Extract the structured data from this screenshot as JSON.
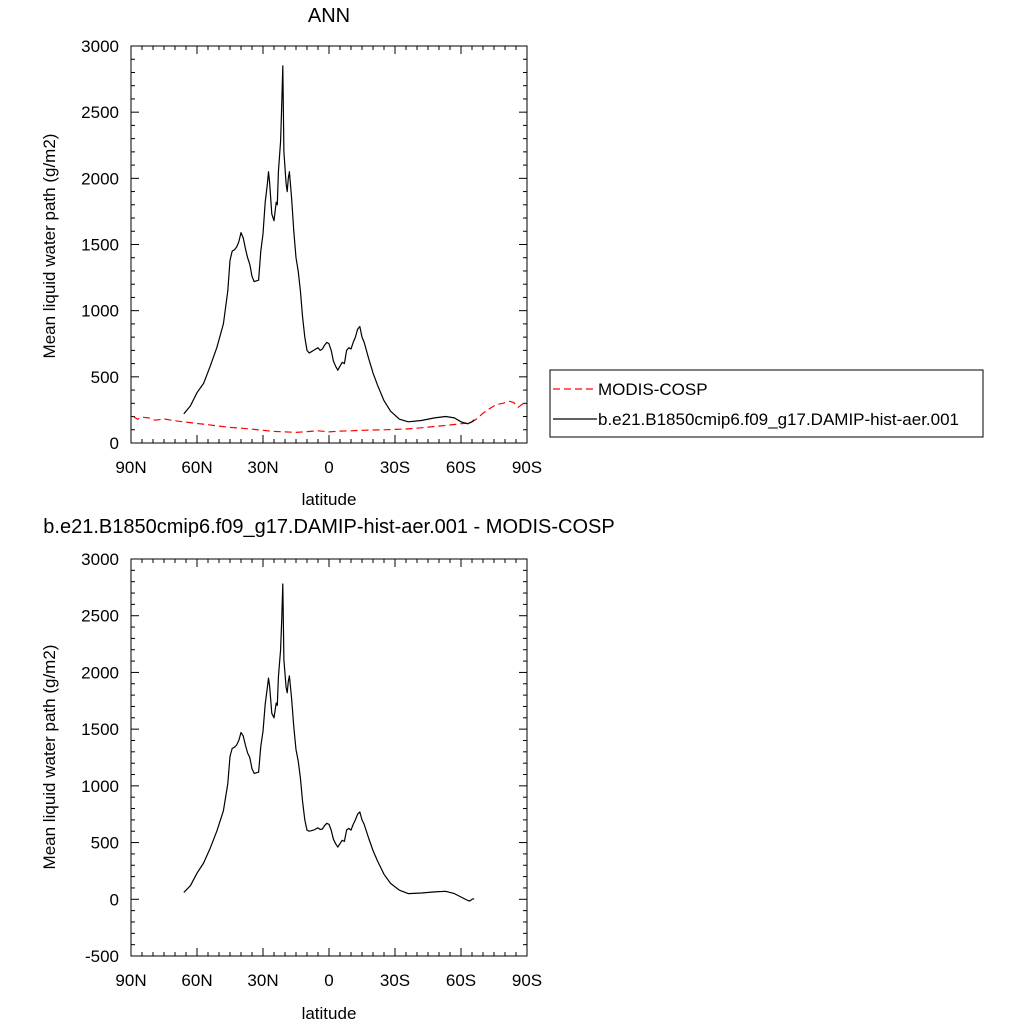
{
  "chart_data": [
    {
      "type": "line",
      "title": "ANN",
      "xlabel": "latitude",
      "ylabel": "Mean liquid water path (g/m2)",
      "xlim": [
        90,
        -90
      ],
      "ylim": [
        0,
        3000
      ],
      "xticks": [
        {
          "value": 90,
          "label": "90N"
        },
        {
          "value": 60,
          "label": "60N"
        },
        {
          "value": 30,
          "label": "30N"
        },
        {
          "value": 0,
          "label": "0"
        },
        {
          "value": -30,
          "label": "30S"
        },
        {
          "value": -60,
          "label": "60S"
        },
        {
          "value": -90,
          "label": "90S"
        }
      ],
      "yticks": [
        0,
        500,
        1000,
        1500,
        2000,
        2500,
        3000
      ],
      "legend": {
        "placement": "right",
        "entries": [
          "MODIS-COSP",
          "b.e21.B1850cmip6.f09_g17.DAMIP-hist-aer.001"
        ]
      },
      "series": [
        {
          "name": "MODIS-COSP",
          "color": "#ff0000",
          "dash": true,
          "points": [
            [
              89,
              200
            ],
            [
              87,
              180
            ],
            [
              85,
              195
            ],
            [
              82,
              190
            ],
            [
              79,
              172
            ],
            [
              75,
              182
            ],
            [
              70,
              168
            ],
            [
              65,
              158
            ],
            [
              60,
              147
            ],
            [
              55,
              138
            ],
            [
              50,
              128
            ],
            [
              45,
              118
            ],
            [
              40,
              112
            ],
            [
              35,
              104
            ],
            [
              30,
              96
            ],
            [
              25,
              88
            ],
            [
              20,
              84
            ],
            [
              15,
              80
            ],
            [
              10,
              86
            ],
            [
              5,
              92
            ],
            [
              0,
              84
            ],
            [
              -5,
              90
            ],
            [
              -10,
              92
            ],
            [
              -15,
              96
            ],
            [
              -20,
              98
            ],
            [
              -25,
              100
            ],
            [
              -30,
              103
            ],
            [
              -35,
              106
            ],
            [
              -40,
              112
            ],
            [
              -45,
              120
            ],
            [
              -50,
              128
            ],
            [
              -55,
              136
            ],
            [
              -60,
              146
            ],
            [
              -64,
              152
            ],
            [
              -67,
              180
            ],
            [
              -70,
              225
            ],
            [
              -73,
              260
            ],
            [
              -76,
              290
            ],
            [
              -79,
              300
            ],
            [
              -82,
              315
            ],
            [
              -84,
              305
            ],
            [
              -86,
              270
            ],
            [
              -88,
              295
            ],
            [
              -89.5,
              315
            ]
          ]
        },
        {
          "name": "b.e21.B1850cmip6.f09_g17.DAMIP-hist-aer.001",
          "color": "#000000",
          "dash": false,
          "points": [
            [
              66,
              220
            ],
            [
              63,
              280
            ],
            [
              60,
              380
            ],
            [
              57,
              450
            ],
            [
              54,
              580
            ],
            [
              51,
              720
            ],
            [
              48,
              900
            ],
            [
              46,
              1150
            ],
            [
              45,
              1380
            ],
            [
              44,
              1450
            ],
            [
              43,
              1460
            ],
            [
              42,
              1480
            ],
            [
              41,
              1520
            ],
            [
              40,
              1590
            ],
            [
              39,
              1550
            ],
            [
              38,
              1470
            ],
            [
              37,
              1400
            ],
            [
              36,
              1350
            ],
            [
              35,
              1260
            ],
            [
              34,
              1220
            ],
            [
              32,
              1230
            ],
            [
              31,
              1450
            ],
            [
              30,
              1580
            ],
            [
              29,
              1820
            ],
            [
              28,
              1960
            ],
            [
              27.5,
              2050
            ],
            [
              27,
              1970
            ],
            [
              26,
              1730
            ],
            [
              25,
              1680
            ],
            [
              24,
              1820
            ],
            [
              23.5,
              1800
            ],
            [
              23,
              2050
            ],
            [
              22,
              2280
            ],
            [
              21.5,
              2550
            ],
            [
              21,
              2850
            ],
            [
              20.5,
              2200
            ],
            [
              19.5,
              1960
            ],
            [
              19,
              1900
            ],
            [
              18.5,
              2000
            ],
            [
              18,
              2050
            ],
            [
              17,
              1850
            ],
            [
              16,
              1600
            ],
            [
              15,
              1400
            ],
            [
              14,
              1300
            ],
            [
              13,
              1150
            ],
            [
              12,
              950
            ],
            [
              11,
              800
            ],
            [
              10,
              700
            ],
            [
              9,
              680
            ],
            [
              8,
              690
            ],
            [
              7,
              700
            ],
            [
              6,
              710
            ],
            [
              5,
              720
            ],
            [
              4,
              700
            ],
            [
              3,
              710
            ],
            [
              2,
              740
            ],
            [
              1,
              760
            ],
            [
              0,
              750
            ],
            [
              -1,
              700
            ],
            [
              -2,
              620
            ],
            [
              -3,
              580
            ],
            [
              -4,
              550
            ],
            [
              -5,
              580
            ],
            [
              -6,
              610
            ],
            [
              -7,
              600
            ],
            [
              -8,
              700
            ],
            [
              -9,
              720
            ],
            [
              -10,
              710
            ],
            [
              -11,
              760
            ],
            [
              -12,
              800
            ],
            [
              -13,
              860
            ],
            [
              -14,
              880
            ],
            [
              -15,
              800
            ],
            [
              -16,
              760
            ],
            [
              -18,
              640
            ],
            [
              -20,
              530
            ],
            [
              -22,
              440
            ],
            [
              -25,
              320
            ],
            [
              -28,
              240
            ],
            [
              -32,
              180
            ],
            [
              -36,
              160
            ],
            [
              -42,
              170
            ],
            [
              -48,
              190
            ],
            [
              -53,
              200
            ],
            [
              -57,
              190
            ],
            [
              -60,
              160
            ],
            [
              -63,
              145
            ],
            [
              -65,
              160
            ],
            [
              -66,
              175
            ]
          ]
        }
      ]
    },
    {
      "type": "line",
      "title": "b.e21.B1850cmip6.f09_g17.DAMIP-hist-aer.001 - MODIS-COSP",
      "xlabel": "latitude",
      "ylabel": "Mean liquid water path (g/m2)",
      "xlim": [
        90,
        -90
      ],
      "ylim": [
        -500,
        3000
      ],
      "xticks": [
        {
          "value": 90,
          "label": "90N"
        },
        {
          "value": 60,
          "label": "60N"
        },
        {
          "value": 30,
          "label": "30N"
        },
        {
          "value": 0,
          "label": "0"
        },
        {
          "value": -30,
          "label": "30S"
        },
        {
          "value": -60,
          "label": "60S"
        },
        {
          "value": -90,
          "label": "90S"
        }
      ],
      "yticks": [
        -500,
        0,
        500,
        1000,
        1500,
        2000,
        2500,
        3000
      ],
      "series": [
        {
          "color": "#000000",
          "dash": false,
          "points": [
            [
              66,
              60
            ],
            [
              63,
              120
            ],
            [
              60,
              230
            ],
            [
              57,
              320
            ],
            [
              54,
              450
            ],
            [
              51,
              600
            ],
            [
              48,
              780
            ],
            [
              46,
              1020
            ],
            [
              45,
              1260
            ],
            [
              44,
              1330
            ],
            [
              43,
              1340
            ],
            [
              42,
              1360
            ],
            [
              41,
              1400
            ],
            [
              40,
              1470
            ],
            [
              39,
              1440
            ],
            [
              38,
              1360
            ],
            [
              37,
              1290
            ],
            [
              36,
              1250
            ],
            [
              35,
              1150
            ],
            [
              34,
              1110
            ],
            [
              32,
              1120
            ],
            [
              31,
              1350
            ],
            [
              30,
              1480
            ],
            [
              29,
              1720
            ],
            [
              28,
              1870
            ],
            [
              27.5,
              1950
            ],
            [
              27,
              1880
            ],
            [
              26,
              1640
            ],
            [
              25,
              1600
            ],
            [
              24,
              1730
            ],
            [
              23.5,
              1710
            ],
            [
              23,
              1960
            ],
            [
              22,
              2200
            ],
            [
              21.5,
              2460
            ],
            [
              21,
              2780
            ],
            [
              20.5,
              2110
            ],
            [
              19.5,
              1870
            ],
            [
              19,
              1820
            ],
            [
              18.5,
              1920
            ],
            [
              18,
              1970
            ],
            [
              17,
              1770
            ],
            [
              16,
              1520
            ],
            [
              15,
              1320
            ],
            [
              14,
              1220
            ],
            [
              13,
              1070
            ],
            [
              12,
              860
            ],
            [
              11,
              700
            ],
            [
              10,
              610
            ],
            [
              9,
              600
            ],
            [
              8,
              605
            ],
            [
              7,
              610
            ],
            [
              6,
              620
            ],
            [
              5,
              630
            ],
            [
              4,
              615
            ],
            [
              3,
              620
            ],
            [
              2,
              650
            ],
            [
              1,
              670
            ],
            [
              0,
              660
            ],
            [
              -1,
              610
            ],
            [
              -2,
              530
            ],
            [
              -3,
              490
            ],
            [
              -4,
              460
            ],
            [
              -5,
              490
            ],
            [
              -6,
              520
            ],
            [
              -7,
              510
            ],
            [
              -8,
              610
            ],
            [
              -9,
              625
            ],
            [
              -10,
              610
            ],
            [
              -11,
              660
            ],
            [
              -12,
              700
            ],
            [
              -13,
              750
            ],
            [
              -14,
              770
            ],
            [
              -15,
              700
            ],
            [
              -16,
              660
            ],
            [
              -18,
              540
            ],
            [
              -20,
              430
            ],
            [
              -22,
              340
            ],
            [
              -25,
              220
            ],
            [
              -28,
              140
            ],
            [
              -32,
              80
            ],
            [
              -36,
              50
            ],
            [
              -42,
              55
            ],
            [
              -48,
              65
            ],
            [
              -53,
              70
            ],
            [
              -57,
              50
            ],
            [
              -60,
              20
            ],
            [
              -63,
              -10
            ],
            [
              -64,
              -15
            ],
            [
              -65,
              0
            ],
            [
              -66,
              5
            ]
          ]
        }
      ]
    }
  ]
}
